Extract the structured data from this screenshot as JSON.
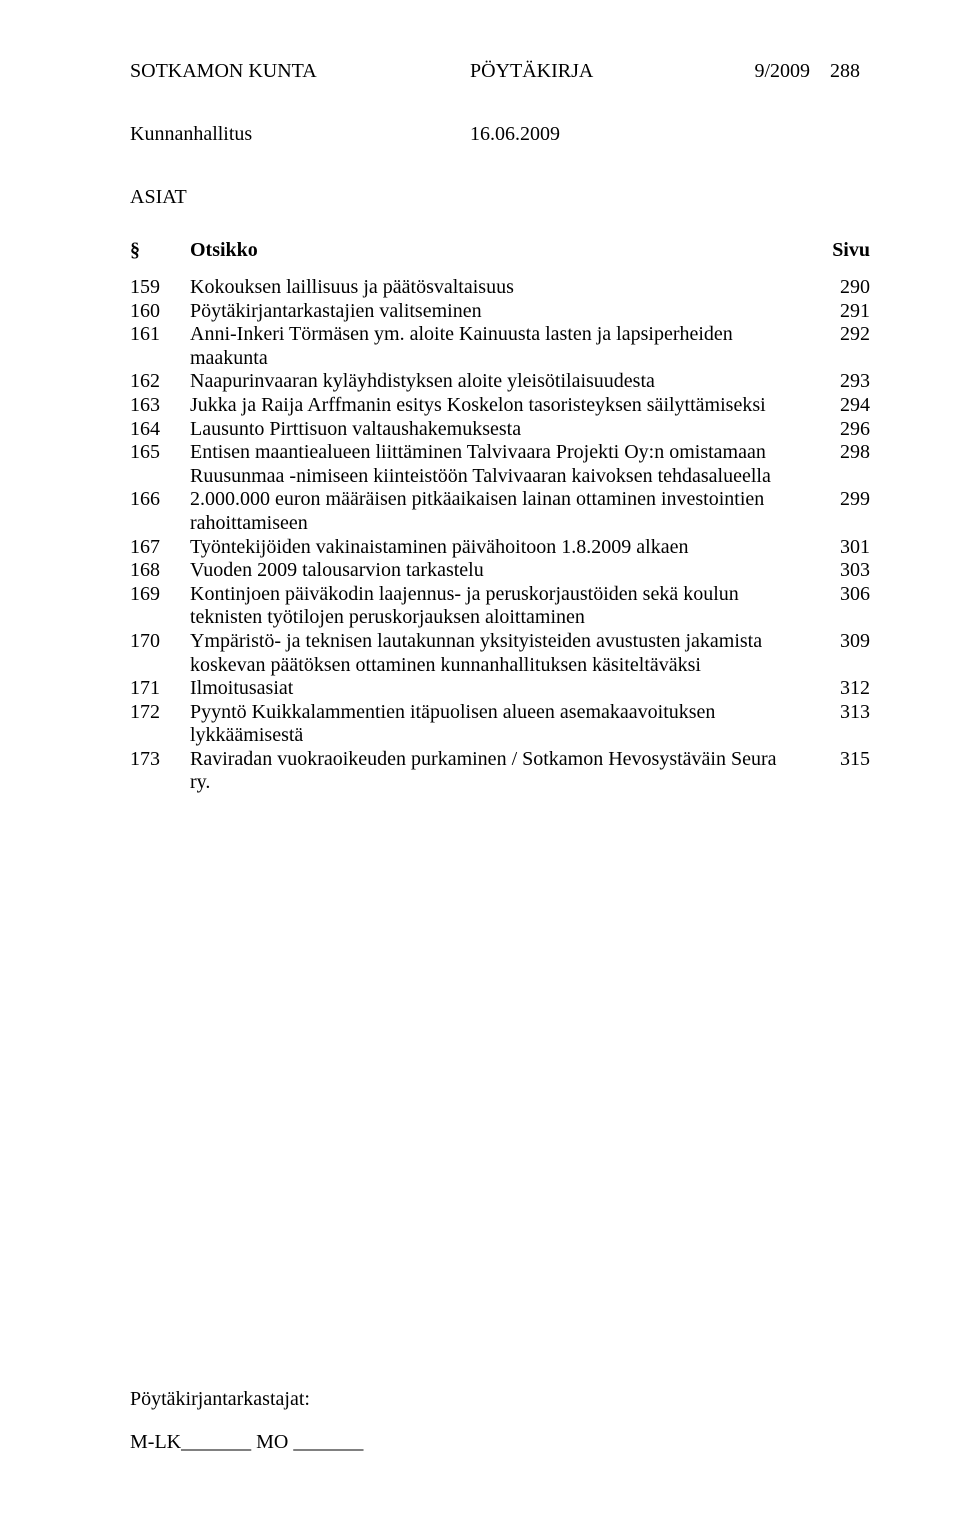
{
  "header": {
    "org": "SOTKAMON KUNTA",
    "doc_type": "PÖYTÄKIRJA",
    "doc_num": "9/2009",
    "page_num": "288"
  },
  "subheader": {
    "body": "Kunnanhallitus",
    "date": "16.06.2009"
  },
  "section_label": "ASIAT",
  "table_header": {
    "sym": "§",
    "title": "Otsikko",
    "page": "Sivu"
  },
  "rows": [
    {
      "num": "159",
      "title": "Kokouksen laillisuus ja päätösvaltaisuus",
      "page": "290"
    },
    {
      "num": "160",
      "title": "Pöytäkirjantarkastajien valitseminen",
      "page": "291"
    },
    {
      "num": "161",
      "title": "Anni-Inkeri Törmäsen ym. aloite Kainuusta lasten ja lapsiperheiden maakunta",
      "page": "292"
    },
    {
      "num": "162",
      "title": "Naapurinvaaran kyläyhdistyksen aloite yleisötilaisuudesta",
      "page": "293"
    },
    {
      "num": "163",
      "title": "Jukka ja Raija Arffmanin esitys Koskelon tasoristeyksen säilyttämiseksi",
      "page": "294"
    },
    {
      "num": "164",
      "title": "Lausunto Pirttisuon valtaushakemuksesta",
      "page": "296"
    },
    {
      "num": "165",
      "title": "Entisen maantiealueen liittäminen Talvivaara Projekti Oy:n omistamaan Ruusunmaa -nimiseen kiinteistöön Talvivaaran kaivoksen tehdasalueella",
      "page": "298"
    },
    {
      "num": "166",
      "title": "2.000.000 euron  määräisen pitkäaikaisen lainan ottaminen investointien rahoittamiseen",
      "page": "299"
    },
    {
      "num": "167",
      "title": "Työntekijöiden vakinaistaminen päivähoitoon 1.8.2009 alkaen",
      "page": "301"
    },
    {
      "num": "168",
      "title": "Vuoden 2009 talousarvion tarkastelu",
      "page": "303"
    },
    {
      "num": "169",
      "title": "Kontinjoen päiväkodin laajennus- ja peruskorjaustöiden sekä koulun teknisten työtilojen peruskorjauksen aloittaminen",
      "page": "306"
    },
    {
      "num": "170",
      "title": "Ympäristö- ja teknisen lautakunnan yksityisteiden avustusten jakamista koskevan päätöksen ottaminen kunnanhallituksen käsiteltäväksi",
      "page": "309"
    },
    {
      "num": "171",
      "title": "Ilmoitusasiat",
      "page": "312"
    },
    {
      "num": "172",
      "title": "Pyyntö Kuikkalammentien itäpuolisen alueen asemakaavoituksen lykkäämisestä",
      "page": "313"
    },
    {
      "num": "173",
      "title": "Raviradan vuokraoikeuden purkaminen / Sotkamon Hevosystäväin Seura ry.",
      "page": "315"
    }
  ],
  "footer": {
    "line1": "Pöytäkirjantarkastajat:",
    "line2": "M-LK_______ MO _______"
  }
}
